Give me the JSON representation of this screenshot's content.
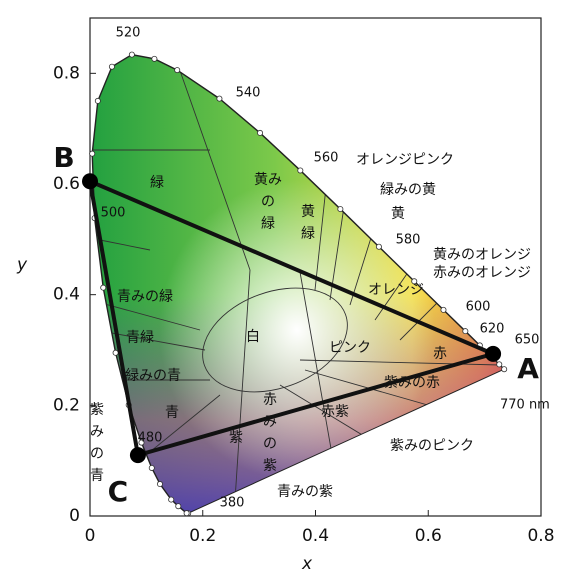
{
  "chart_data": {
    "type": "chromaticity",
    "xlabel": "x",
    "ylabel": "y",
    "xlim": [
      0,
      0.8
    ],
    "ylim": [
      0,
      0.9
    ],
    "xticks": [
      0,
      0.2,
      0.4,
      0.6,
      0.8
    ],
    "yticks": [
      0,
      0.2,
      0.4,
      0.6,
      0.8
    ],
    "locus": {
      "x": [
        0.1741,
        0.1714,
        0.1566,
        0.144,
        0.1241,
        0.1096,
        0.0913,
        0.0687,
        0.0454,
        0.0235,
        0.0082,
        0.0039,
        0.0139,
        0.0389,
        0.0743,
        0.1142,
        0.1547,
        0.2296,
        0.3016,
        0.3731,
        0.4441,
        0.5125,
        0.5752,
        0.627,
        0.6658,
        0.6915,
        0.726,
        0.7347
      ],
      "y": [
        0.005,
        0.0051,
        0.0177,
        0.0297,
        0.0578,
        0.0868,
        0.1327,
        0.2007,
        0.295,
        0.4127,
        0.5384,
        0.6548,
        0.7502,
        0.812,
        0.8338,
        0.8262,
        0.8059,
        0.7543,
        0.6923,
        0.6245,
        0.5547,
        0.4866,
        0.4242,
        0.3725,
        0.334,
        0.3083,
        0.274,
        0.2653
      ]
    },
    "wavelength_labels": [
      "520",
      "540",
      "560",
      "580",
      "600",
      "620",
      "650",
      "500",
      "480",
      "380",
      "770 nm"
    ],
    "points": [
      {
        "label": "A",
        "x": 0.715,
        "y": 0.293
      },
      {
        "label": "B",
        "x": 0.0,
        "y": 0.605
      },
      {
        "label": "C",
        "x": 0.085,
        "y": 0.11
      }
    ],
    "region_labels": [
      [
        "緑"
      ],
      [
        "黄み",
        "の",
        "緑"
      ],
      [
        "黄",
        "緑"
      ],
      [
        "オレンジピンク"
      ],
      [
        "緑みの黄"
      ],
      [
        "黄"
      ],
      [
        "黄みのオレンジ"
      ],
      [
        "赤みのオレンジ"
      ],
      [
        "オレンジ"
      ],
      [
        "白"
      ],
      [
        "ピンク"
      ],
      [
        "赤"
      ],
      [
        "紫みの赤"
      ],
      [
        "青みの緑"
      ],
      [
        "青緑"
      ],
      [
        "緑みの青"
      ],
      [
        "青"
      ],
      [
        "赤",
        "み",
        "の",
        "紫"
      ],
      [
        "紫"
      ],
      [
        "赤紫"
      ],
      [
        "紫みのピンク"
      ],
      [
        "青みの紫"
      ],
      [
        "紫",
        "み",
        "の",
        "青"
      ]
    ]
  }
}
